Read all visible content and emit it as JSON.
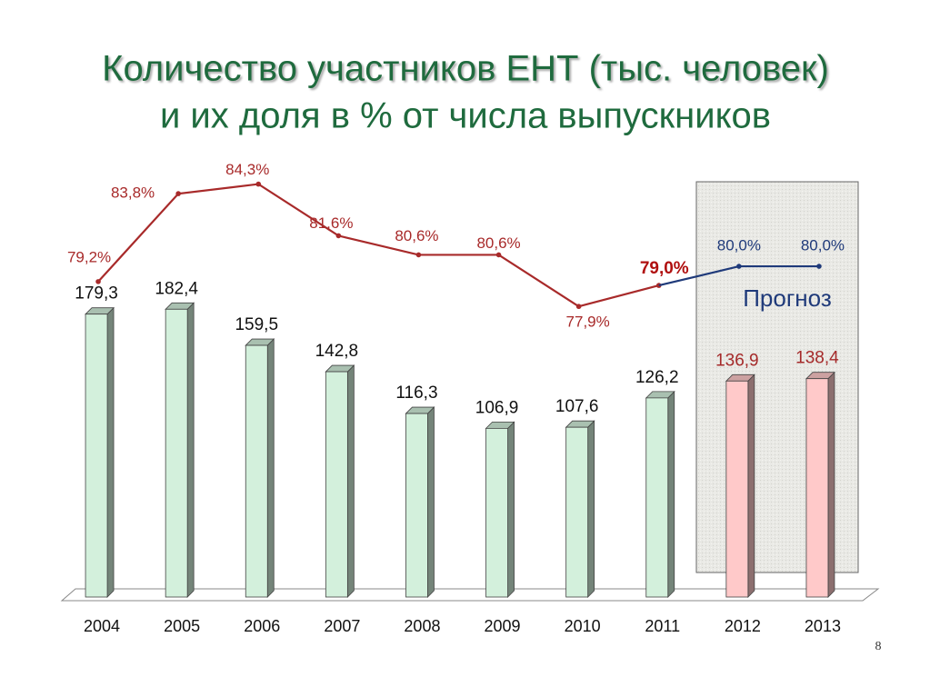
{
  "chart_data": {
    "type": "bar",
    "title": [
      "Количество участников ЕНТ (тыс. человек)",
      "и их доля в % от числа выпускников"
    ],
    "categories": [
      "2004",
      "2005",
      "2006",
      "2007",
      "2008",
      "2009",
      "2010",
      "2011",
      "2012",
      "2013"
    ],
    "ylim": [
      0,
      292
    ],
    "y2lim": [
      62.7,
      86.8
    ],
    "series": [
      {
        "type": "bar",
        "values": [
          179.3,
          182.4,
          159.5,
          142.8,
          116.3,
          106.9,
          107.6,
          126.2,
          136.9,
          138.4
        ],
        "value_labels": [
          "179,3",
          "182,4",
          "159,5",
          "142,8",
          "116,3",
          "106,9",
          "107,6",
          "126,2",
          "136,9",
          "138,4"
        ],
        "colors": [
          "#d3f0dc",
          "#d3f0dc",
          "#d3f0dc",
          "#d3f0dc",
          "#d3f0dc",
          "#d3f0dc",
          "#d3f0dc",
          "#d3f0dc",
          "#ffc9c9",
          "#ffc9c9"
        ],
        "label_colors": [
          "#111111",
          "#111111",
          "#111111",
          "#111111",
          "#111111",
          "#111111",
          "#111111",
          "#111111",
          "#a52a2a",
          "#a52a2a"
        ]
      },
      {
        "type": "line",
        "axis": "y2",
        "color": "#a82a2a",
        "values": [
          79.2,
          83.8,
          84.3,
          81.6,
          80.6,
          80.6,
          77.9,
          79.0,
          null,
          null
        ],
        "value_labels": [
          "79,2%",
          "83,8%",
          "84,3%",
          "81,6%",
          "80,6%",
          "80,6%",
          "77,9%",
          "79,0%",
          null,
          null
        ]
      },
      {
        "type": "line",
        "axis": "y2",
        "color": "#1f3a7a",
        "values": [
          null,
          null,
          null,
          null,
          null,
          null,
          null,
          null,
          80.0,
          80.0
        ],
        "value_labels": [
          null,
          null,
          null,
          null,
          null,
          null,
          null,
          null,
          "80,0%",
          "80,0%"
        ]
      }
    ],
    "annotations": [
      "Прогноз"
    ],
    "page_number": "8"
  }
}
